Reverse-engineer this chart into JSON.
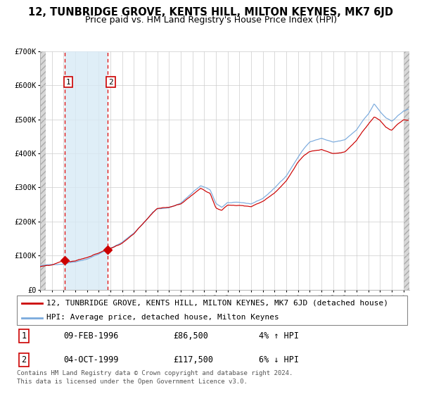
{
  "title": "12, TUNBRIDGE GROVE, KENTS HILL, MILTON KEYNES, MK7 6JD",
  "subtitle": "Price paid vs. HM Land Registry's House Price Index (HPI)",
  "ylabel_ticks": [
    "£0",
    "£100K",
    "£200K",
    "£300K",
    "£400K",
    "£500K",
    "£600K",
    "£700K"
  ],
  "ytick_vals": [
    0,
    100000,
    200000,
    300000,
    400000,
    500000,
    600000,
    700000
  ],
  "ylim": [
    0,
    700000
  ],
  "xlim_start": 1994.0,
  "xlim_end": 2025.5,
  "purchase1_date": 1996.1,
  "purchase1_price": 86500,
  "purchase1_label": "1",
  "purchase2_date": 1999.75,
  "purchase2_price": 117500,
  "purchase2_label": "2",
  "hpi_color": "#7aaadd",
  "property_color": "#cc0000",
  "shade_color": "#d8eaf5",
  "legend_line1": "12, TUNBRIDGE GROVE, KENTS HILL, MILTON KEYNES, MK7 6JD (detached house)",
  "legend_line2": "HPI: Average price, detached house, Milton Keynes",
  "table_row1": [
    "1",
    "09-FEB-1996",
    "£86,500",
    "4% ↑ HPI"
  ],
  "table_row2": [
    "2",
    "04-OCT-1999",
    "£117,500",
    "6% ↓ HPI"
  ],
  "footer": "Contains HM Land Registry data © Crown copyright and database right 2024.\nThis data is licensed under the Open Government Licence v3.0.",
  "title_fontsize": 10.5,
  "subtitle_fontsize": 9,
  "axis_fontsize": 7.5,
  "legend_fontsize": 8,
  "table_fontsize": 8.5,
  "footer_fontsize": 6.5
}
